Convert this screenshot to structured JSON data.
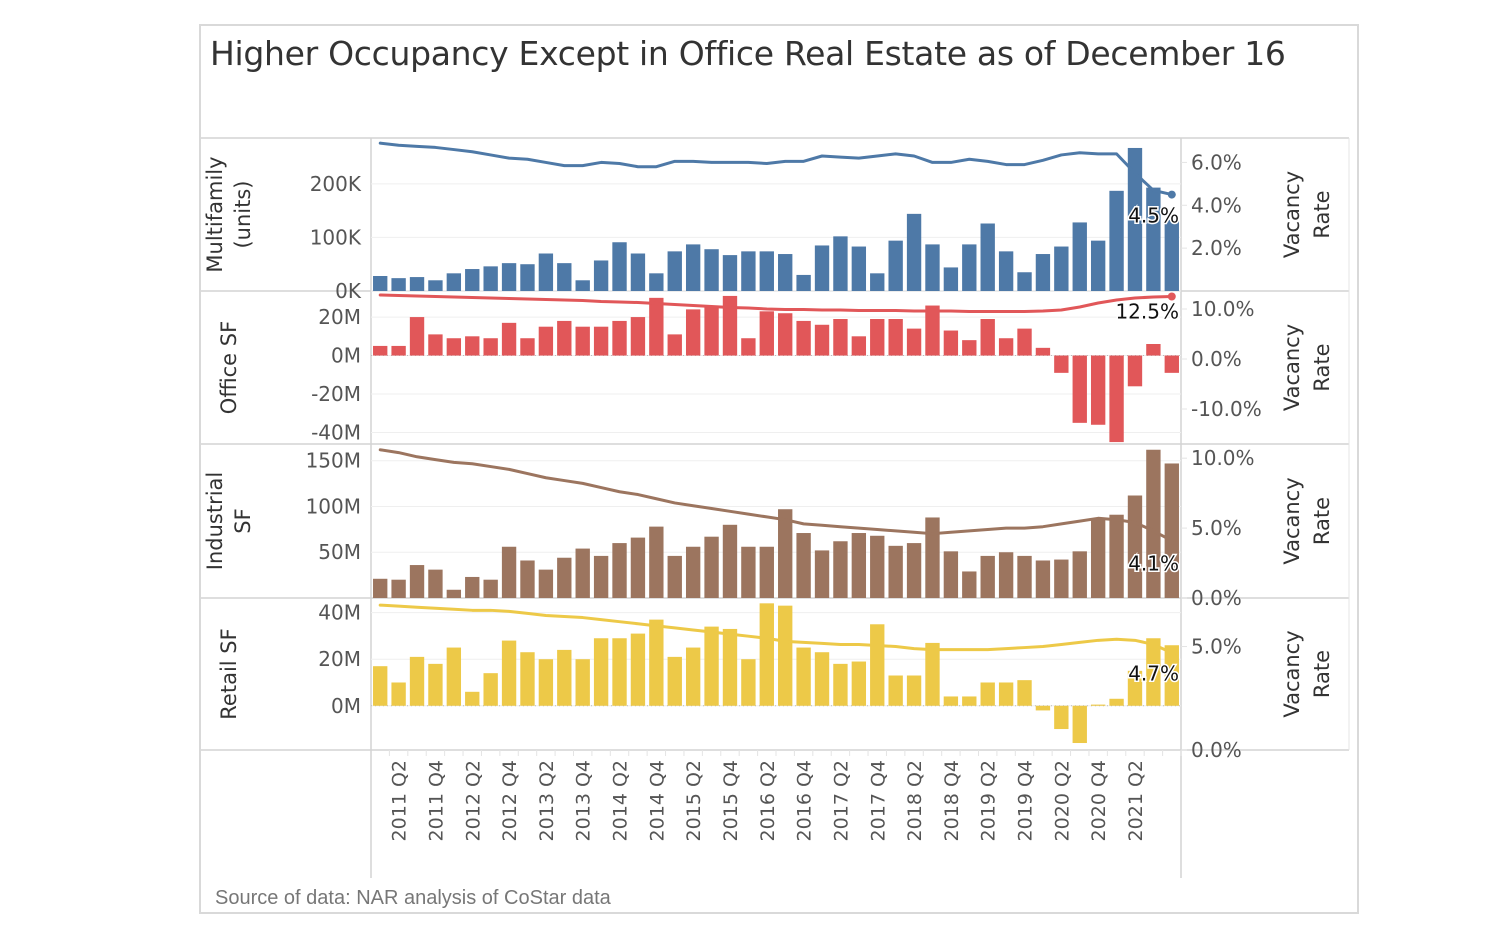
{
  "title": "Higher Occupancy Except in Office Real Estate as of December 16",
  "source": "Source of data: NAR analysis of CoStar data",
  "chart_data": {
    "type": "bar",
    "subtype": "small-multiples bar + line (dual axis)",
    "x": [
      "2011 Q1",
      "2011 Q2",
      "2011 Q3",
      "2011 Q4",
      "2012 Q1",
      "2012 Q2",
      "2012 Q3",
      "2012 Q4",
      "2013 Q1",
      "2013 Q2",
      "2013 Q3",
      "2013 Q4",
      "2014 Q1",
      "2014 Q2",
      "2014 Q3",
      "2014 Q4",
      "2015 Q1",
      "2015 Q2",
      "2015 Q3",
      "2015 Q4",
      "2016 Q1",
      "2016 Q2",
      "2016 Q3",
      "2016 Q4",
      "2017 Q1",
      "2017 Q2",
      "2017 Q3",
      "2017 Q4",
      "2018 Q1",
      "2018 Q2",
      "2018 Q3",
      "2018 Q4",
      "2019 Q1",
      "2019 Q2",
      "2019 Q3",
      "2019 Q4",
      "2020 Q1",
      "2020 Q2",
      "2020 Q3",
      "2020 Q4",
      "2021 Q1",
      "2021 Q2",
      "2021 Q3",
      "2021 Q4"
    ],
    "x_tick_labels": [
      "2011 Q2",
      "2011 Q4",
      "2012 Q2",
      "2012 Q4",
      "2013 Q2",
      "2013 Q4",
      "2014 Q2",
      "2014 Q4",
      "2015 Q2",
      "2015 Q4",
      "2016 Q2",
      "2016 Q4",
      "2017 Q2",
      "2017 Q4",
      "2018 Q2",
      "2018 Q4",
      "2019 Q2",
      "2019 Q4",
      "2020 Q2",
      "2020 Q4",
      "2021 Q2"
    ],
    "right_axis_title": "Vacancy Rate",
    "panels": [
      {
        "name": "Multifamily",
        "ylabel": "Multifamily (units)",
        "color": "#4e79a7",
        "ylim": [
          0,
          280000
        ],
        "yticks": [
          0,
          100000,
          200000
        ],
        "ytick_labels": [
          "0K",
          "100K",
          "200K"
        ],
        "bar_values": [
          28000,
          24000,
          26000,
          20000,
          33000,
          41000,
          46000,
          52000,
          50000,
          70000,
          52000,
          20000,
          57000,
          91000,
          70000,
          33000,
          74000,
          87000,
          78000,
          67000,
          74000,
          74000,
          69000,
          30000,
          85000,
          102000,
          83000,
          33000,
          94000,
          144000,
          87000,
          44000,
          87000,
          126000,
          74000,
          35000,
          69000,
          83000,
          128000,
          94000,
          187000,
          267000,
          193000,
          133000
        ],
        "vacancy_ylim": [
          0,
          7.0
        ],
        "vacancy_ticks": [
          2.0,
          4.0,
          6.0
        ],
        "vacancy_tick_labels": [
          "2.0%",
          "4.0%",
          "6.0%"
        ],
        "vacancy_values": [
          6.9,
          6.8,
          6.75,
          6.7,
          6.6,
          6.5,
          6.35,
          6.2,
          6.15,
          6.0,
          5.85,
          5.85,
          6.0,
          5.95,
          5.8,
          5.8,
          6.05,
          6.05,
          6.0,
          6.0,
          6.0,
          5.95,
          6.05,
          6.05,
          6.3,
          6.25,
          6.2,
          6.3,
          6.4,
          6.3,
          6.0,
          6.0,
          6.15,
          6.05,
          5.9,
          5.9,
          6.1,
          6.35,
          6.45,
          6.4,
          6.4,
          5.5,
          4.7,
          4.5
        ],
        "end_label": "4.5%"
      },
      {
        "name": "Office",
        "ylabel": "Office SF",
        "color": "#e15759",
        "ylim": [
          -46000000,
          32000000
        ],
        "yticks": [
          -40000000,
          -20000000,
          0,
          20000000
        ],
        "ytick_labels": [
          "-40M",
          "-20M",
          "0M",
          "20M"
        ],
        "bar_values": [
          5000000,
          5000000,
          20000000,
          11000000,
          9000000,
          10000000,
          9000000,
          17000000,
          9000000,
          15000000,
          18000000,
          15000000,
          15000000,
          18000000,
          20000000,
          30000000,
          11000000,
          24000000,
          26000000,
          31000000,
          9000000,
          23000000,
          22000000,
          18000000,
          16000000,
          19000000,
          10000000,
          19000000,
          19000000,
          14000000,
          26000000,
          13000000,
          8000000,
          19000000,
          9000000,
          14000000,
          4000000,
          -9000000,
          -35000000,
          -36000000,
          -45000000,
          -16000000,
          6000000,
          -9000000
        ],
        "vacancy_ylim": [
          -17.0,
          13.0
        ],
        "vacancy_ticks": [
          -10.0,
          0.0,
          10.0
        ],
        "vacancy_tick_labels": [
          "-10.0%",
          "0.0%",
          "10.0%"
        ],
        "vacancy_values": [
          12.8,
          12.7,
          12.6,
          12.5,
          12.4,
          12.3,
          12.2,
          12.1,
          12.0,
          11.9,
          11.8,
          11.7,
          11.5,
          11.4,
          11.3,
          11.1,
          10.9,
          10.7,
          10.5,
          10.3,
          10.2,
          10.0,
          9.9,
          9.9,
          9.8,
          9.8,
          9.7,
          9.7,
          9.7,
          9.6,
          9.6,
          9.6,
          9.5,
          9.5,
          9.5,
          9.5,
          9.6,
          9.8,
          10.4,
          11.2,
          11.8,
          12.2,
          12.4,
          12.5
        ],
        "end_label": "12.5%"
      },
      {
        "name": "Industrial",
        "ylabel": "Industrial SF",
        "color": "#9c755f",
        "ylim": [
          0,
          165000000
        ],
        "yticks": [
          50000000,
          100000000,
          150000000
        ],
        "ytick_labels": [
          "50M",
          "100M",
          "150M"
        ],
        "bar_values": [
          21000000,
          20000000,
          36000000,
          31000000,
          9000000,
          23000000,
          20000000,
          56000000,
          41000000,
          31000000,
          44000000,
          54000000,
          46000000,
          60000000,
          66000000,
          78000000,
          46000000,
          56000000,
          67000000,
          80000000,
          56000000,
          56000000,
          97000000,
          71000000,
          52000000,
          62000000,
          71000000,
          68000000,
          57000000,
          60000000,
          88000000,
          51000000,
          29000000,
          46000000,
          50000000,
          46000000,
          41000000,
          42000000,
          51000000,
          87000000,
          91000000,
          112000000,
          162000000,
          147000000
        ],
        "vacancy_ylim": [
          0,
          10.8
        ],
        "vacancy_ticks": [
          0.0,
          5.0,
          10.0
        ],
        "vacancy_tick_labels": [
          "0.0%",
          "5.0%",
          "10.0%"
        ],
        "vacancy_values": [
          10.6,
          10.4,
          10.1,
          9.9,
          9.7,
          9.6,
          9.4,
          9.2,
          8.9,
          8.6,
          8.4,
          8.2,
          7.9,
          7.6,
          7.4,
          7.1,
          6.8,
          6.6,
          6.4,
          6.2,
          6.0,
          5.8,
          5.6,
          5.3,
          5.2,
          5.1,
          5.0,
          4.9,
          4.8,
          4.7,
          4.6,
          4.7,
          4.8,
          4.9,
          5.0,
          5.0,
          5.1,
          5.3,
          5.5,
          5.7,
          5.6,
          5.4,
          4.8,
          4.1
        ],
        "end_label": "4.1%"
      },
      {
        "name": "Retail",
        "ylabel": "Retail SF",
        "color": "#edc948",
        "ylim": [
          -19000000,
          45000000
        ],
        "yticks": [
          0,
          20000000,
          40000000
        ],
        "ytick_labels": [
          "0M",
          "20M",
          "40M"
        ],
        "bar_values": [
          17000000,
          10000000,
          21000000,
          18000000,
          25000000,
          6000000,
          14000000,
          28000000,
          23000000,
          20000000,
          24000000,
          20000000,
          29000000,
          29000000,
          31000000,
          37000000,
          21000000,
          25000000,
          34000000,
          33000000,
          20000000,
          44000000,
          43000000,
          25000000,
          23000000,
          18000000,
          19000000,
          35000000,
          13000000,
          13000000,
          27000000,
          4000000,
          4000000,
          10000000,
          10000000,
          11000000,
          -2000000,
          -10000000,
          -16000000,
          500000,
          3000000,
          15000000,
          29000000,
          26000000
        ],
        "vacancy_ylim": [
          0,
          7.2
        ],
        "vacancy_ticks": [
          0.0,
          5.0
        ],
        "vacancy_tick_labels": [
          "0.0%",
          "5.0%"
        ],
        "vacancy_values": [
          7.0,
          6.95,
          6.9,
          6.85,
          6.8,
          6.75,
          6.75,
          6.7,
          6.6,
          6.5,
          6.45,
          6.4,
          6.3,
          6.2,
          6.1,
          6.0,
          5.9,
          5.8,
          5.7,
          5.6,
          5.5,
          5.4,
          5.25,
          5.2,
          5.15,
          5.1,
          5.1,
          5.05,
          5.0,
          4.9,
          4.85,
          4.85,
          4.85,
          4.85,
          4.9,
          4.95,
          5.0,
          5.1,
          5.2,
          5.3,
          5.35,
          5.3,
          5.1,
          4.7
        ],
        "end_label": "4.7%"
      }
    ]
  }
}
